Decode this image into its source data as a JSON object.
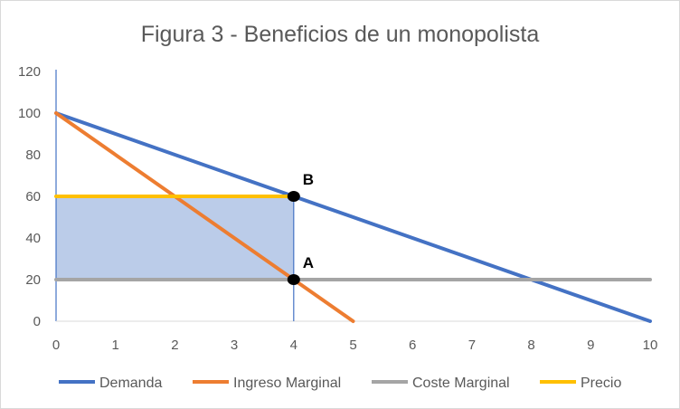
{
  "chart_data": {
    "type": "line",
    "title": "Figura 3 - Beneficios de un monopolista",
    "xlabel": "",
    "ylabel": "",
    "xlim": [
      0,
      10
    ],
    "ylim": [
      0,
      120
    ],
    "x_ticks": [
      0,
      1,
      2,
      3,
      4,
      5,
      6,
      7,
      8,
      9,
      10
    ],
    "y_ticks": [
      0,
      20,
      40,
      60,
      80,
      100,
      120
    ],
    "grid": false,
    "legend_position": "bottom",
    "series": [
      {
        "name": "Demanda",
        "color": "#4472c4",
        "points": [
          [
            0,
            100
          ],
          [
            10,
            0
          ]
        ]
      },
      {
        "name": "Ingreso Marginal",
        "color": "#ed7d31",
        "points": [
          [
            0,
            100
          ],
          [
            5,
            0
          ]
        ]
      },
      {
        "name": "Coste Marginal",
        "color": "#a5a5a5",
        "points": [
          [
            0,
            20
          ],
          [
            10,
            20
          ]
        ]
      },
      {
        "name": "Precio",
        "color": "#ffc000",
        "points": [
          [
            0,
            60
          ],
          [
            4,
            60
          ]
        ]
      }
    ],
    "shaded_area": {
      "x": [
        0,
        4
      ],
      "y": [
        20,
        60
      ],
      "color": "#b4c7e7"
    },
    "vertical_line": {
      "x": 4,
      "y": [
        0,
        60
      ],
      "color": "#4472c4"
    },
    "points": [
      {
        "label": "B",
        "x": 4,
        "y": 60
      },
      {
        "label": "A",
        "x": 4,
        "y": 20
      }
    ]
  }
}
